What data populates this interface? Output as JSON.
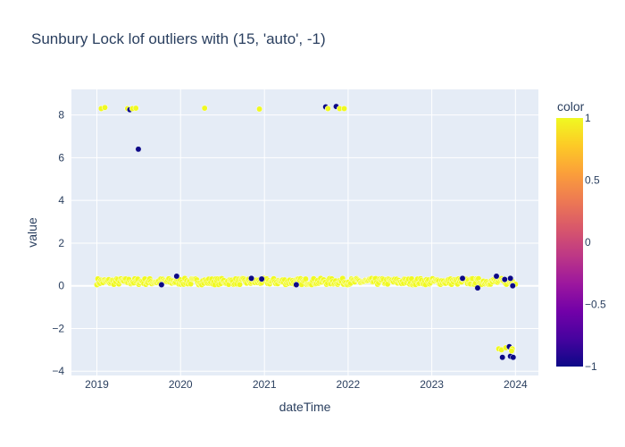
{
  "chart_data": {
    "type": "scatter",
    "title": "Sunbury Lock lof outliers with (15, 'auto', -1)",
    "xlabel": "dateTime",
    "ylabel": "value",
    "x_ticks": [
      "2019",
      "2020",
      "2021",
      "2022",
      "2023",
      "2024"
    ],
    "x_tick_dates": [
      "2019-01-01",
      "2020-01-01",
      "2021-01-01",
      "2022-01-01",
      "2023-01-01",
      "2024-01-01"
    ],
    "xlim": [
      "2018-09-12",
      "2024-04-10"
    ],
    "y_ticks": [
      -4,
      -2,
      0,
      2,
      4,
      6,
      8
    ],
    "y_tick_labels": [
      "−4",
      "−2",
      "0",
      "2",
      "4",
      "6",
      "8"
    ],
    "ylim": [
      -4.2,
      9.2
    ],
    "grid": true,
    "plot_background": "#e5ecf6",
    "colorbar": {
      "title": "color",
      "range": [
        -1,
        1
      ],
      "ticks": [
        1,
        0.5,
        0,
        -0.5,
        -1
      ],
      "tick_labels": [
        "1",
        "0.5",
        "0",
        "−0.5",
        "−1"
      ],
      "colorscale": [
        "#0d0887",
        "#46039f",
        "#7201a8",
        "#9c179e",
        "#bd3786",
        "#d8576b",
        "#ed7953",
        "#fb9f3a",
        "#fdca26",
        "#f0f921"
      ]
    },
    "baseline_band": {
      "x_start": "2019-01-01",
      "x_end": "2024-01-01",
      "y_center": 0.2,
      "y_spread": 0.15,
      "color_value": 1
    },
    "points": [
      {
        "x": "2019-01-20",
        "y": 8.3,
        "c": 1
      },
      {
        "x": "2019-02-05",
        "y": 8.35,
        "c": 1
      },
      {
        "x": "2019-05-15",
        "y": 8.3,
        "c": 1
      },
      {
        "x": "2019-05-25",
        "y": 8.25,
        "c": -1
      },
      {
        "x": "2019-06-05",
        "y": 8.3,
        "c": 1
      },
      {
        "x": "2019-06-20",
        "y": 8.32,
        "c": 1
      },
      {
        "x": "2019-07-01",
        "y": 6.4,
        "c": -1
      },
      {
        "x": "2020-04-15",
        "y": 8.32,
        "c": 1
      },
      {
        "x": "2020-12-10",
        "y": 8.28,
        "c": 1
      },
      {
        "x": "2021-09-25",
        "y": 8.38,
        "c": -1
      },
      {
        "x": "2021-10-05",
        "y": 8.3,
        "c": 1
      },
      {
        "x": "2021-11-10",
        "y": 8.4,
        "c": -1
      },
      {
        "x": "2021-11-25",
        "y": 8.3,
        "c": 1
      },
      {
        "x": "2021-12-15",
        "y": 8.3,
        "c": 1
      },
      {
        "x": "2019-12-15",
        "y": 0.45,
        "c": -1
      },
      {
        "x": "2019-10-10",
        "y": 0.05,
        "c": -1
      },
      {
        "x": "2020-11-05",
        "y": 0.35,
        "c": -1
      },
      {
        "x": "2020-12-20",
        "y": 0.32,
        "c": -1
      },
      {
        "x": "2021-05-20",
        "y": 0.05,
        "c": -1
      },
      {
        "x": "2023-05-15",
        "y": 0.35,
        "c": -1
      },
      {
        "x": "2023-07-20",
        "y": -0.1,
        "c": -1
      },
      {
        "x": "2023-10-10",
        "y": 0.45,
        "c": -1
      },
      {
        "x": "2023-11-15",
        "y": 0.3,
        "c": -1
      },
      {
        "x": "2023-12-10",
        "y": 0.35,
        "c": -1
      },
      {
        "x": "2023-12-20",
        "y": 0.0,
        "c": -1
      },
      {
        "x": "2023-10-20",
        "y": -2.95,
        "c": 1
      },
      {
        "x": "2023-11-01",
        "y": -3.0,
        "c": 1
      },
      {
        "x": "2023-11-20",
        "y": -2.9,
        "c": 1
      },
      {
        "x": "2023-12-05",
        "y": -2.85,
        "c": -1
      },
      {
        "x": "2023-12-18",
        "y": -2.95,
        "c": 1
      },
      {
        "x": "2023-11-05",
        "y": -3.35,
        "c": -1
      },
      {
        "x": "2023-12-10",
        "y": -3.3,
        "c": -1
      },
      {
        "x": "2023-12-22",
        "y": -3.35,
        "c": -1
      },
      {
        "x": "2023-12-15",
        "y": -3.05,
        "c": 1
      }
    ]
  }
}
